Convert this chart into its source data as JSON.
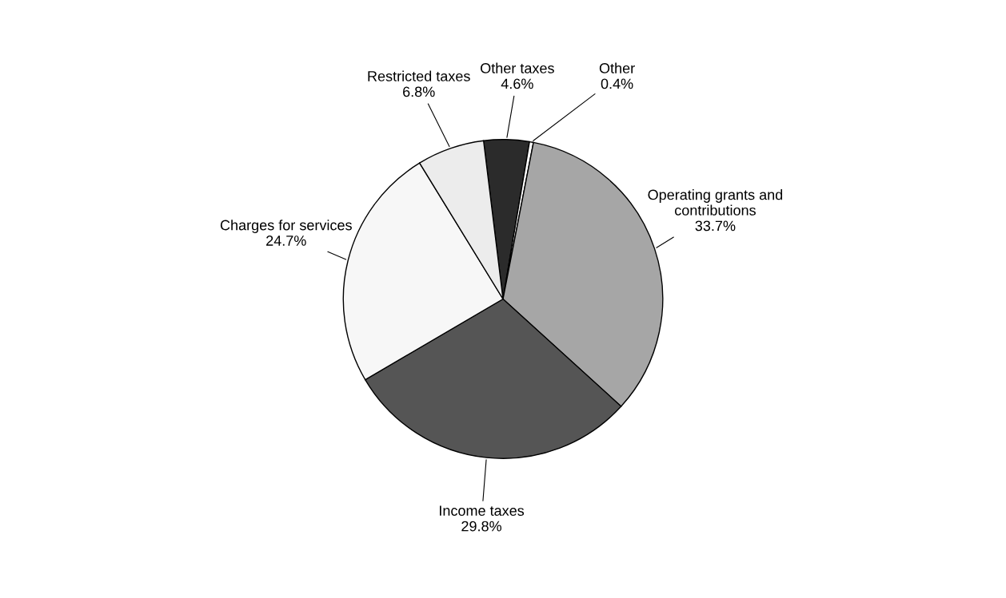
{
  "chart_data": {
    "type": "pie",
    "categories": [
      "Other taxes",
      "Other",
      "Operating grants and\ncontributions",
      "Income taxes",
      "Charges for services",
      "Restricted taxes"
    ],
    "values": [
      4.6,
      0.4,
      33.7,
      29.8,
      24.7,
      6.8
    ],
    "value_labels": [
      "4.6%",
      "0.4%",
      "33.7%",
      "29.8%",
      "24.7%",
      "6.8%"
    ],
    "colors": [
      "#2b2b2b",
      "#ffffff",
      "#a6a6a6",
      "#555555",
      "#f7f7f7",
      "#ececec"
    ]
  }
}
